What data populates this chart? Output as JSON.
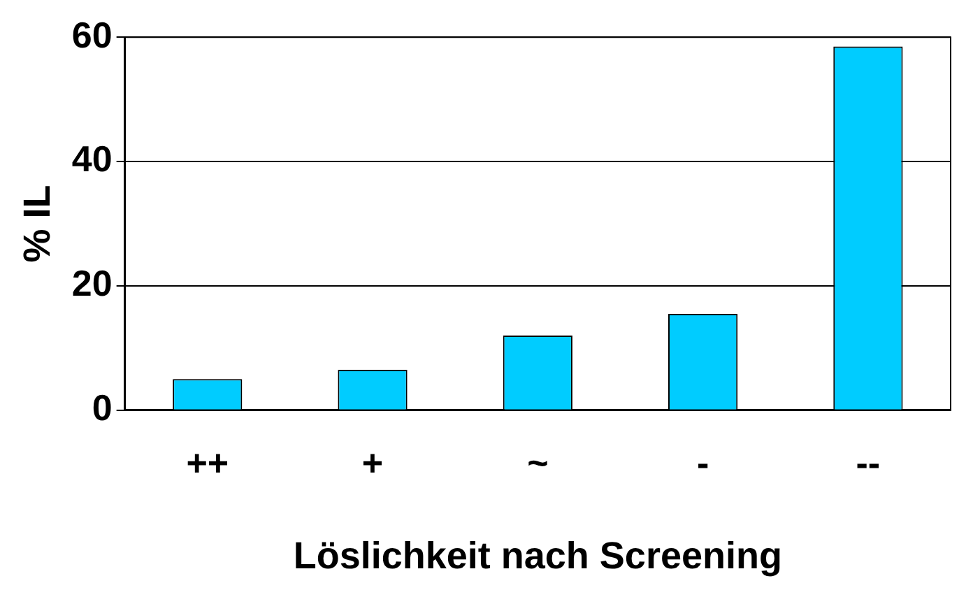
{
  "chart_data": {
    "type": "bar",
    "ylabel": "% IL",
    "xlabel": "Löslichkeit nach Screening",
    "categories": [
      "++",
      "+",
      "~",
      "-",
      "--"
    ],
    "values": [
      5,
      6.5,
      12,
      15.5,
      58.5
    ],
    "color": "#00ccff",
    "ylim": [
      0,
      60
    ],
    "yticks": [
      0,
      20,
      40,
      60
    ],
    "grid": "y",
    "legend": false
  }
}
